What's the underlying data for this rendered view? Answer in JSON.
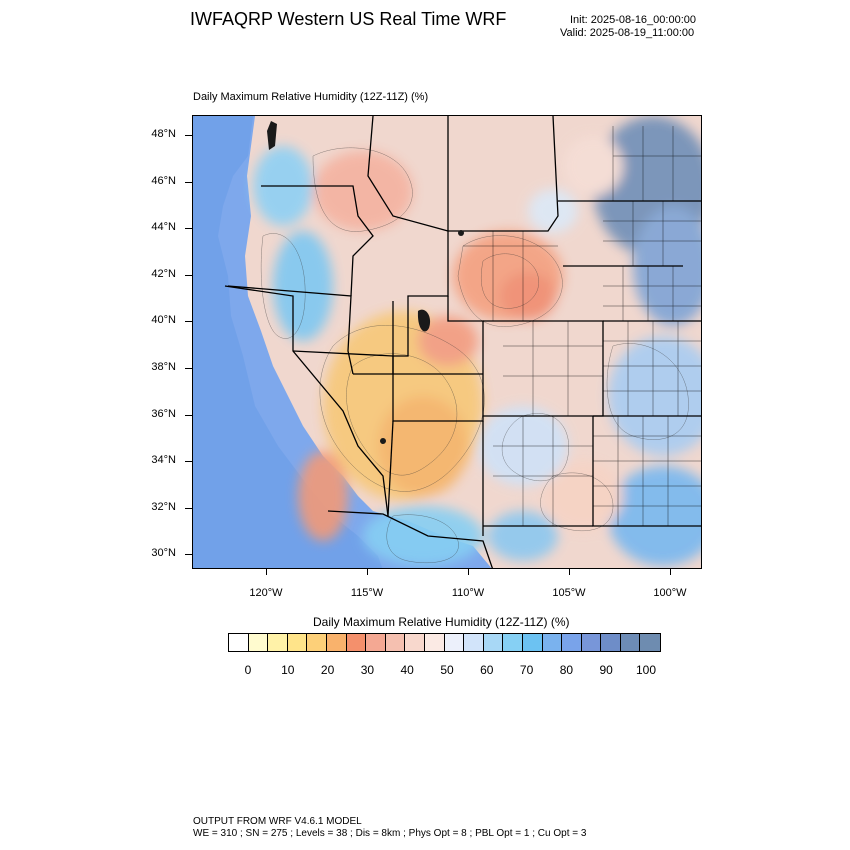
{
  "header": {
    "title": "IWFAQRP Western US Real Time WRF",
    "init": "Init: 2025-08-16_00:00:00",
    "valid": "Valid: 2025-08-19_11:00:00"
  },
  "plot": {
    "field_title": "Daily Maximum Relative Humidity (12Z-11Z)   (%)"
  },
  "axes": {
    "lat_labels": [
      "48°N",
      "46°N",
      "44°N",
      "42°N",
      "40°N",
      "38°N",
      "36°N",
      "34°N",
      "32°N",
      "30°N"
    ],
    "lon_labels": [
      "120°W",
      "115°W",
      "110°W",
      "105°W",
      "100°W"
    ]
  },
  "colorbar": {
    "title": "Daily Maximum Relative Humidity (12Z-11Z)  (%)",
    "labels": [
      "0",
      "10",
      "20",
      "30",
      "40",
      "50",
      "60",
      "70",
      "80",
      "90",
      "100"
    ],
    "colors": [
      "#ffffff",
      "#fffbcf",
      "#fff2a8",
      "#ffe48a",
      "#fdd079",
      "#f9b26c",
      "#f4906c",
      "#f4a893",
      "#f5c0b0",
      "#f8d8cd",
      "#fbeae4",
      "#ecf0fb",
      "#d2e4fa",
      "#a8d8f6",
      "#86d0f4",
      "#6cc2f2",
      "#7ab2ee",
      "#79a3ea",
      "#7896d9",
      "#6e8dc8",
      "#6d8cb6",
      "#6e8cb0"
    ]
  },
  "footer": {
    "line1": "OUTPUT FROM WRF V4.6.1 MODEL",
    "line2": "WE = 310 ; SN = 275 ; Levels = 38 ; Dis = 8km ; Phys Opt = 8 ; PBL Opt = 1 ; Cu Opt = 3"
  }
}
